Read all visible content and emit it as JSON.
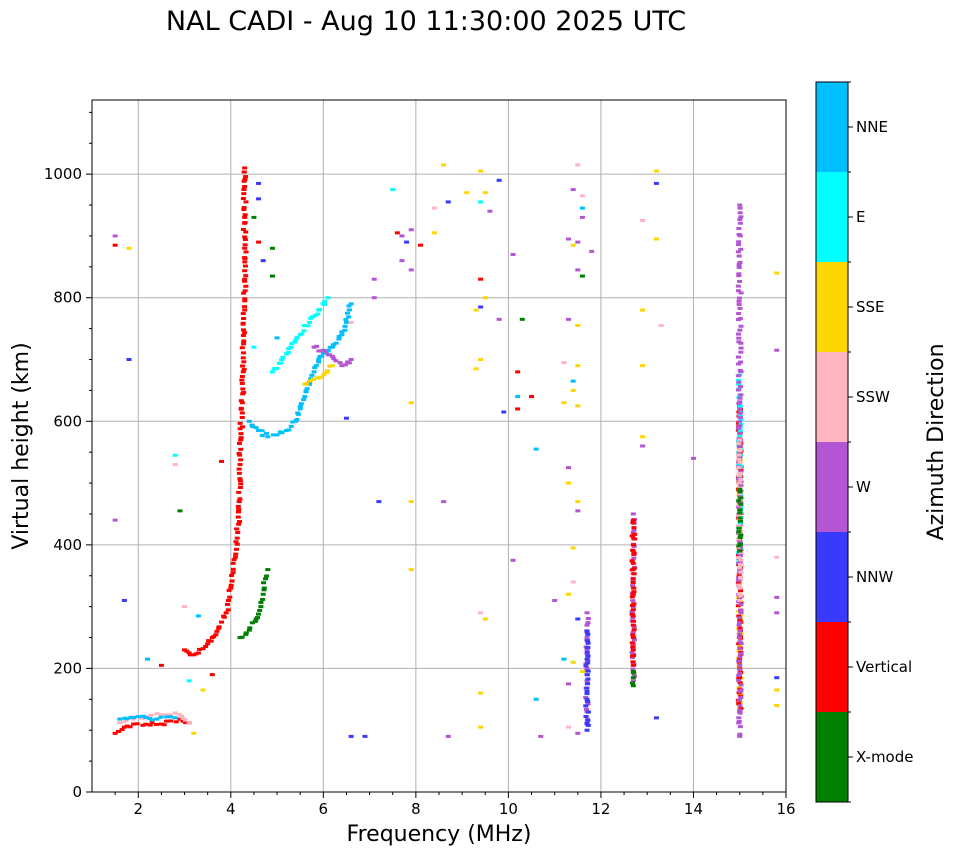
{
  "chart_data": {
    "type": "scatter",
    "title": "NAL CADI - Aug 10 11:30:00 2025 UTC",
    "xlabel": "Frequency (MHz)",
    "ylabel": "Virtual height (km)",
    "xlim": [
      1,
      16
    ],
    "ylim": [
      0,
      1120
    ],
    "xticks": [
      2,
      4,
      6,
      8,
      10,
      12,
      14,
      16
    ],
    "xticklabels": [
      "2",
      "4",
      "6",
      "8",
      "10",
      "12",
      "14",
      "16"
    ],
    "yticks": [
      0,
      200,
      400,
      600,
      800,
      1000
    ],
    "yticklabels": [
      "0",
      "200",
      "400",
      "600",
      "800",
      "1000"
    ],
    "grid": true,
    "colorbar": {
      "label": "Azimuth Direction",
      "categories": [
        {
          "name": "X-mode",
          "color": "#008000"
        },
        {
          "name": "Vertical",
          "color": "#ff0000"
        },
        {
          "name": "NNW",
          "color": "#3a3aff"
        },
        {
          "name": "W",
          "color": "#b455d4"
        },
        {
          "name": "SSW",
          "color": "#ffb6c1"
        },
        {
          "name": "SSE",
          "color": "#ffd700"
        },
        {
          "name": "E",
          "color": "#00ffff"
        },
        {
          "name": "NNE",
          "color": "#00bfff"
        }
      ]
    },
    "traces": [
      {
        "color": "Vertical",
        "points": [
          [
            3.0,
            230
          ],
          [
            3.1,
            225
          ],
          [
            3.2,
            222
          ],
          [
            3.3,
            225
          ],
          [
            3.4,
            232
          ],
          [
            3.5,
            240
          ],
          [
            3.6,
            250
          ],
          [
            3.7,
            260
          ],
          [
            3.8,
            275
          ],
          [
            3.9,
            290
          ],
          [
            3.95,
            310
          ],
          [
            4.0,
            330
          ],
          [
            4.05,
            355
          ],
          [
            4.1,
            380
          ],
          [
            4.15,
            420
          ],
          [
            4.18,
            470
          ],
          [
            4.2,
            530
          ],
          [
            4.22,
            580
          ],
          [
            4.25,
            630
          ],
          [
            4.27,
            680
          ],
          [
            4.28,
            730
          ],
          [
            4.3,
            780
          ],
          [
            4.3,
            830
          ],
          [
            4.3,
            880
          ],
          [
            4.3,
            930
          ],
          [
            4.3,
            980
          ],
          [
            4.3,
            1010
          ]
        ]
      },
      {
        "color": "Vertical",
        "points": [
          [
            1.5,
            95
          ],
          [
            1.7,
            105
          ],
          [
            1.9,
            110
          ],
          [
            2.1,
            108
          ],
          [
            2.3,
            112
          ],
          [
            2.5,
            110
          ],
          [
            2.7,
            115
          ],
          [
            2.9,
            118
          ],
          [
            3.1,
            112
          ]
        ]
      },
      {
        "color": "SSW",
        "points": [
          [
            1.6,
            112
          ],
          [
            1.9,
            118
          ],
          [
            2.2,
            122
          ],
          [
            2.5,
            125
          ],
          [
            2.8,
            128
          ],
          [
            3.1,
            112
          ]
        ]
      },
      {
        "color": "NNE",
        "points": [
          [
            1.6,
            118
          ],
          [
            2.0,
            122
          ],
          [
            2.4,
            118
          ],
          [
            2.8,
            120
          ]
        ]
      },
      {
        "color": "X-mode",
        "points": [
          [
            4.2,
            250
          ],
          [
            4.4,
            262
          ],
          [
            4.55,
            280
          ],
          [
            4.65,
            300
          ],
          [
            4.7,
            320
          ],
          [
            4.75,
            345
          ],
          [
            4.8,
            360
          ]
        ]
      },
      {
        "color": "NNE",
        "points": [
          [
            4.4,
            600
          ],
          [
            4.6,
            585
          ],
          [
            4.8,
            575
          ],
          [
            5.0,
            578
          ],
          [
            5.2,
            585
          ],
          [
            5.4,
            600
          ],
          [
            5.5,
            620
          ],
          [
            5.6,
            640
          ],
          [
            5.7,
            660
          ],
          [
            5.8,
            680
          ],
          [
            5.9,
            700
          ],
          [
            6.0,
            710
          ],
          [
            6.2,
            720
          ],
          [
            6.4,
            740
          ],
          [
            6.5,
            760
          ],
          [
            6.6,
            790
          ]
        ]
      },
      {
        "color": "E",
        "points": [
          [
            4.9,
            680
          ],
          [
            5.1,
            700
          ],
          [
            5.3,
            720
          ],
          [
            5.5,
            740
          ],
          [
            5.7,
            760
          ],
          [
            5.9,
            780
          ],
          [
            6.1,
            800
          ]
        ]
      },
      {
        "color": "W",
        "points": [
          [
            5.8,
            720
          ],
          [
            6.0,
            715
          ],
          [
            6.2,
            705
          ],
          [
            6.4,
            690
          ],
          [
            6.6,
            700
          ]
        ]
      },
      {
        "color": "SSE",
        "points": [
          [
            5.6,
            660
          ],
          [
            5.9,
            670
          ],
          [
            6.2,
            690
          ]
        ]
      },
      {
        "color": "W",
        "points": [
          [
            12.7,
            450
          ],
          [
            12.7,
            420
          ],
          [
            12.7,
            390
          ],
          [
            12.7,
            360
          ],
          [
            12.7,
            330
          ],
          [
            12.7,
            300
          ],
          [
            12.7,
            270
          ],
          [
            12.7,
            240
          ],
          [
            12.7,
            210
          ],
          [
            12.7,
            180
          ]
        ]
      },
      {
        "color": "Vertical",
        "points": [
          [
            12.7,
            440
          ],
          [
            12.7,
            400
          ],
          [
            12.7,
            370
          ],
          [
            12.7,
            345
          ],
          [
            12.7,
            320
          ],
          [
            12.7,
            295
          ],
          [
            12.7,
            270
          ],
          [
            12.7,
            250
          ],
          [
            12.7,
            230
          ],
          [
            12.7,
            205
          ]
        ]
      },
      {
        "color": "X-mode",
        "points": [
          [
            12.7,
            195
          ],
          [
            12.7,
            185
          ],
          [
            12.7,
            172
          ]
        ]
      },
      {
        "color": "W",
        "points": [
          [
            11.7,
            290
          ],
          [
            11.7,
            270
          ],
          [
            11.7,
            250
          ],
          [
            11.7,
            230
          ],
          [
            11.7,
            200
          ],
          [
            11.7,
            180
          ],
          [
            11.7,
            160
          ],
          [
            11.7,
            130
          ],
          [
            11.7,
            110
          ]
        ]
      },
      {
        "color": "NNW",
        "points": [
          [
            11.7,
            260
          ],
          [
            11.7,
            215
          ],
          [
            11.7,
            190
          ],
          [
            11.7,
            150
          ],
          [
            11.7,
            100
          ]
        ]
      },
      {
        "color": "SSE",
        "points": [
          [
            15.0,
            575
          ],
          [
            15.0,
            560
          ],
          [
            15.0,
            530
          ],
          [
            15.0,
            485
          ],
          [
            15.0,
            440
          ],
          [
            15.0,
            400
          ],
          [
            15.0,
            340
          ],
          [
            15.0,
            320
          ],
          [
            15.0,
            235
          ],
          [
            15.0,
            135
          ]
        ]
      },
      {
        "color": "Vertical",
        "points": [
          [
            15.0,
            625
          ],
          [
            15.0,
            580
          ],
          [
            15.0,
            480
          ],
          [
            15.0,
            345
          ],
          [
            15.0,
            130
          ]
        ]
      },
      {
        "color": "E",
        "points": [
          [
            15.0,
            675
          ],
          [
            15.0,
            400
          ],
          [
            15.0,
            360
          ]
        ]
      },
      {
        "color": "W",
        "points": [
          [
            15.0,
            950
          ],
          [
            15.0,
            620
          ],
          [
            15.0,
            315
          ],
          [
            15.0,
            90
          ]
        ]
      },
      {
        "color": "SSW",
        "points": [
          [
            15.0,
            570
          ],
          [
            15.0,
            330
          ],
          [
            15.0,
            310
          ]
        ]
      },
      {
        "color": "X-mode",
        "points": [
          [
            15.0,
            490
          ],
          [
            15.0,
            390
          ]
        ]
      }
    ],
    "scatter": [
      [
        1.5,
        900,
        "W"
      ],
      [
        1.5,
        885,
        "Vertical"
      ],
      [
        1.5,
        440,
        "W"
      ],
      [
        1.8,
        880,
        "SSE"
      ],
      [
        1.8,
        700,
        "NNW"
      ],
      [
        1.7,
        310,
        "NNW"
      ],
      [
        2.2,
        215,
        "NNE"
      ],
      [
        2.5,
        205,
        "Vertical"
      ],
      [
        2.8,
        545,
        "E"
      ],
      [
        2.8,
        530,
        "SSW"
      ],
      [
        2.9,
        455,
        "X-mode"
      ],
      [
        3.0,
        300,
        "SSW"
      ],
      [
        3.1,
        180,
        "E"
      ],
      [
        3.3,
        285,
        "NNE"
      ],
      [
        3.4,
        165,
        "SSE"
      ],
      [
        3.2,
        95,
        "SSE"
      ],
      [
        3.6,
        190,
        "Vertical"
      ],
      [
        3.8,
        535,
        "Vertical"
      ],
      [
        4.6,
        985,
        "NNW"
      ],
      [
        4.6,
        960,
        "NNW"
      ],
      [
        4.5,
        930,
        "X-mode"
      ],
      [
        4.6,
        890,
        "Vertical"
      ],
      [
        4.9,
        880,
        "X-mode"
      ],
      [
        4.9,
        835,
        "X-mode"
      ],
      [
        4.7,
        860,
        "NNW"
      ],
      [
        6.5,
        605,
        "NNW"
      ],
      [
        6.6,
        760,
        "SSW"
      ],
      [
        5.0,
        735,
        "NNE"
      ],
      [
        4.5,
        720,
        "E"
      ],
      [
        7.2,
        470,
        "NNW"
      ],
      [
        7.5,
        975,
        "E"
      ],
      [
        7.6,
        905,
        "Vertical"
      ],
      [
        7.7,
        900,
        "W"
      ],
      [
        7.9,
        910,
        "W"
      ],
      [
        7.8,
        890,
        "NNW"
      ],
      [
        8.1,
        885,
        "Vertical"
      ],
      [
        7.7,
        860,
        "W"
      ],
      [
        7.9,
        845,
        "W"
      ],
      [
        7.1,
        830,
        "W"
      ],
      [
        7.1,
        800,
        "W"
      ],
      [
        7.9,
        630,
        "SSE"
      ],
      [
        7.9,
        470,
        "SSE"
      ],
      [
        7.9,
        360,
        "SSE"
      ],
      [
        8.6,
        1015,
        "SSE"
      ],
      [
        8.7,
        955,
        "NNW"
      ],
      [
        8.4,
        945,
        "SSW"
      ],
      [
        8.4,
        905,
        "SSE"
      ],
      [
        9.1,
        970,
        "SSE"
      ],
      [
        9.4,
        1005,
        "SSE"
      ],
      [
        9.5,
        970,
        "SSE"
      ],
      [
        9.4,
        955,
        "E"
      ],
      [
        9.6,
        940,
        "W"
      ],
      [
        9.8,
        990,
        "NNW"
      ],
      [
        9.4,
        830,
        "Vertical"
      ],
      [
        9.5,
        800,
        "SSE"
      ],
      [
        9.4,
        785,
        "NNW"
      ],
      [
        9.3,
        780,
        "SSE"
      ],
      [
        9.8,
        765,
        "W"
      ],
      [
        10.1,
        870,
        "W"
      ],
      [
        9.4,
        700,
        "SSE"
      ],
      [
        9.3,
        685,
        "SSE"
      ],
      [
        9.9,
        615,
        "NNW"
      ],
      [
        10.2,
        680,
        "Vertical"
      ],
      [
        10.2,
        640,
        "NNE"
      ],
      [
        10.5,
        640,
        "Vertical"
      ],
      [
        10.2,
        620,
        "Vertical"
      ],
      [
        10.3,
        765,
        "X-mode"
      ],
      [
        10.6,
        555,
        "NNE"
      ],
      [
        8.6,
        470,
        "W"
      ],
      [
        9.4,
        290,
        "SSW"
      ],
      [
        9.5,
        280,
        "SSE"
      ],
      [
        10.1,
        375,
        "W"
      ],
      [
        9.4,
        160,
        "SSE"
      ],
      [
        9.4,
        105,
        "SSE"
      ],
      [
        8.7,
        90,
        "W"
      ],
      [
        6.6,
        90,
        "NNW"
      ],
      [
        6.9,
        90,
        "NNW"
      ],
      [
        10.6,
        150,
        "NNE"
      ],
      [
        10.7,
        90,
        "W"
      ],
      [
        11.5,
        1015,
        "SSW"
      ],
      [
        11.4,
        975,
        "W"
      ],
      [
        11.6,
        965,
        "SSW"
      ],
      [
        11.6,
        945,
        "NNE"
      ],
      [
        11.6,
        930,
        "W"
      ],
      [
        11.3,
        895,
        "W"
      ],
      [
        11.4,
        885,
        "SSE"
      ],
      [
        11.5,
        890,
        "W"
      ],
      [
        11.8,
        875,
        "W"
      ],
      [
        11.5,
        845,
        "W"
      ],
      [
        11.6,
        835,
        "X-mode"
      ],
      [
        11.3,
        765,
        "W"
      ],
      [
        11.5,
        755,
        "SSE"
      ],
      [
        11.2,
        695,
        "SSW"
      ],
      [
        11.5,
        690,
        "SSE"
      ],
      [
        11.4,
        665,
        "NNE"
      ],
      [
        11.4,
        650,
        "SSE"
      ],
      [
        11.2,
        630,
        "SSE"
      ],
      [
        11.5,
        625,
        "SSE"
      ],
      [
        11.3,
        525,
        "W"
      ],
      [
        11.3,
        500,
        "SSE"
      ],
      [
        11.5,
        470,
        "SSE"
      ],
      [
        11.5,
        455,
        "W"
      ],
      [
        11.4,
        395,
        "SSE"
      ],
      [
        11.4,
        340,
        "SSW"
      ],
      [
        11.3,
        320,
        "SSE"
      ],
      [
        11.0,
        310,
        "W"
      ],
      [
        11.5,
        280,
        "NNW"
      ],
      [
        11.2,
        215,
        "NNE"
      ],
      [
        11.4,
        210,
        "SSE"
      ],
      [
        11.6,
        195,
        "SSE"
      ],
      [
        11.3,
        175,
        "W"
      ],
      [
        11.3,
        105,
        "SSW"
      ],
      [
        11.5,
        95,
        "W"
      ],
      [
        12.9,
        925,
        "SSW"
      ],
      [
        13.2,
        1005,
        "SSE"
      ],
      [
        13.2,
        985,
        "NNW"
      ],
      [
        13.2,
        895,
        "SSE"
      ],
      [
        13.3,
        755,
        "SSW"
      ],
      [
        12.9,
        780,
        "SSE"
      ],
      [
        12.9,
        690,
        "SSE"
      ],
      [
        12.9,
        575,
        "SSE"
      ],
      [
        12.9,
        560,
        "W"
      ],
      [
        13.2,
        120,
        "NNW"
      ],
      [
        14.0,
        540,
        "W"
      ],
      [
        15.8,
        840,
        "SSE"
      ],
      [
        15.8,
        715,
        "W"
      ],
      [
        15.8,
        380,
        "SSW"
      ],
      [
        15.8,
        315,
        "W"
      ],
      [
        15.8,
        290,
        "W"
      ],
      [
        15.8,
        185,
        "NNW"
      ],
      [
        15.8,
        165,
        "SSE"
      ],
      [
        15.8,
        140,
        "SSE"
      ]
    ]
  }
}
